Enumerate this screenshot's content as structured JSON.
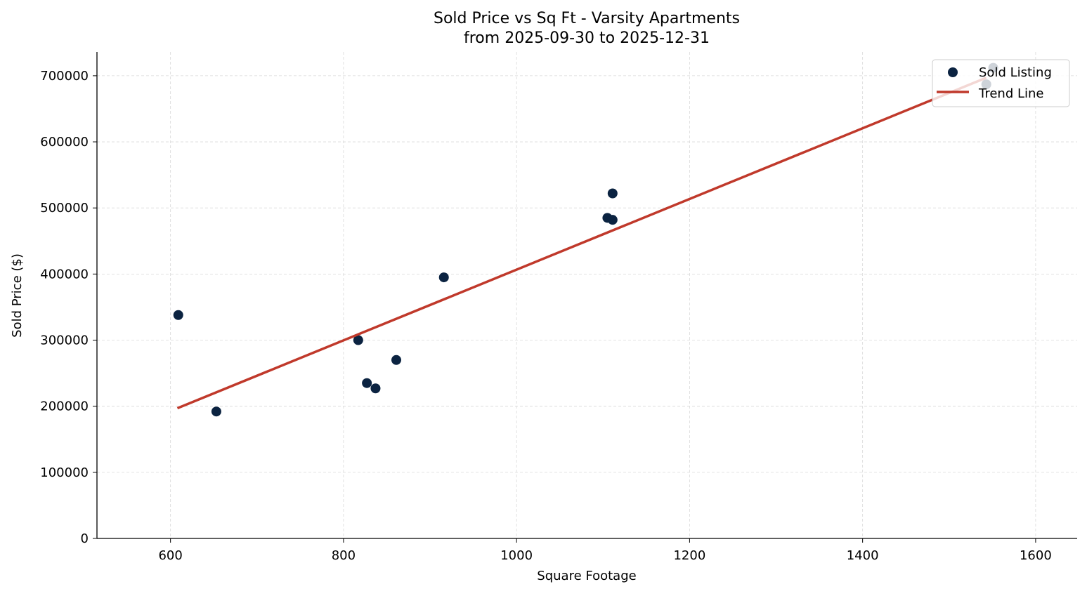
{
  "chart_data": {
    "type": "scatter",
    "title": "Sold Price vs Sq Ft - Varsity Apartments",
    "subtitle": "from 2025-09-30 to 2025-12-31",
    "xlabel": "Square Footage",
    "ylabel": "Sold Price ($)",
    "xlim": [
      515,
      1648
    ],
    "ylim": [
      0,
      736000
    ],
    "xticks": [
      600,
      800,
      1000,
      1200,
      1400,
      1600
    ],
    "yticks": [
      0,
      100000,
      200000,
      300000,
      400000,
      500000,
      600000,
      700000
    ],
    "grid": true,
    "legend_position": "top-right",
    "series": [
      {
        "name": "Sold Listing",
        "kind": "scatter",
        "color": "#0b2341",
        "points": [
          {
            "x": 609,
            "y": 338000
          },
          {
            "x": 653,
            "y": 192000
          },
          {
            "x": 817,
            "y": 300000
          },
          {
            "x": 827,
            "y": 235000
          },
          {
            "x": 837,
            "y": 227000
          },
          {
            "x": 861,
            "y": 270000
          },
          {
            "x": 916,
            "y": 395000
          },
          {
            "x": 1105,
            "y": 485000
          },
          {
            "x": 1111,
            "y": 482000
          },
          {
            "x": 1111,
            "y": 522000
          },
          {
            "x": 1543,
            "y": 687000
          },
          {
            "x": 1551,
            "y": 712000
          }
        ]
      },
      {
        "name": "Trend Line",
        "kind": "line",
        "color": "#c0392b",
        "points": [
          {
            "x": 608,
            "y": 197000
          },
          {
            "x": 1543,
            "y": 697000
          }
        ]
      }
    ]
  }
}
